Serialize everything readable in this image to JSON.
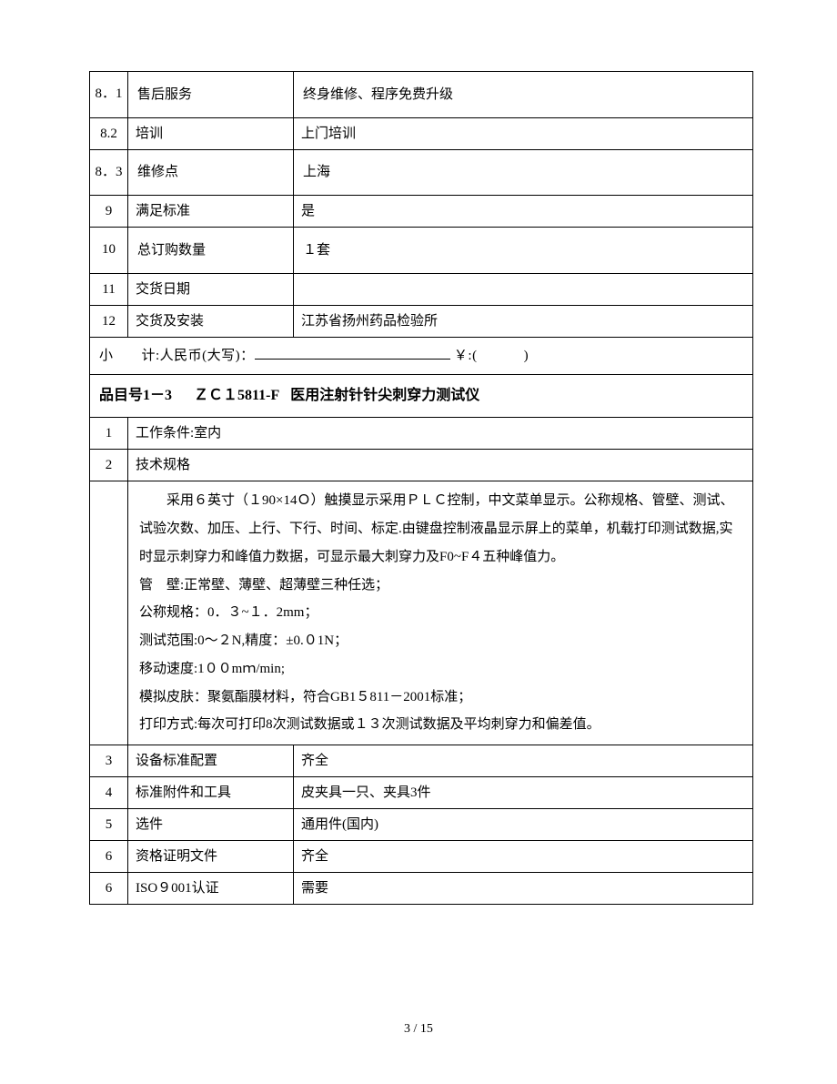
{
  "rows_top": [
    {
      "num": "8．1",
      "label": "售后服务",
      "value": "终身维修、程序免费升级",
      "tall": true
    },
    {
      "num": "8.2",
      "label": "培训",
      "value": "上门培训",
      "tall": false
    },
    {
      "num": "8．3",
      "label": "维修点",
      "value": "上海",
      "tall": true
    },
    {
      "num": "9",
      "label": "满足标准",
      "value": "是",
      "tall": false
    },
    {
      "num": "10",
      "label": "总订购数量",
      "value": "１套",
      "tall": true
    },
    {
      "num": "11",
      "label": "交货日期",
      "value": "",
      "tall": false
    },
    {
      "num": "12",
      "label": "交货及安装",
      "value": "江苏省扬州药品检验所",
      "tall": false
    }
  ],
  "subtotal": {
    "prefix": "小　　计:人民币(大写)：",
    "suffix1": "￥:(",
    "suffix2": ")"
  },
  "section_header": {
    "item_no": "品目号1－3",
    "model": "ＺＣ１5811-F",
    "name": "医用注射针针尖刺穿力测试仪"
  },
  "row_1": {
    "num": "1",
    "label": "工作条件:室内"
  },
  "row_2": {
    "num": "2",
    "label": "技术规格"
  },
  "spec_lines": [
    "采用６英寸（１90×14Ｏ）触摸显示采用ＰＬＣ控制，中文菜单显示。公称规格、管壁、测试、试验次数、加压、上行、下行、时间、标定.由键盘控制液晶显示屏上的菜单，机载打印测试数据,实时显示刺穿力和峰值力数据，可显示最大刺穿力及F0~F４五种峰值力。",
    "管　壁:正常壁、薄壁、超薄壁三种任选；",
    "公称规格：0．３~１．2mm；",
    "测试范围:0～２N,精度：±0.０1N；",
    "移动速度:1００mｍ/min;",
    "模拟皮肤：聚氨酯膜材料，符合GB1５811－2001标准；",
    "打印方式:每次可打印8次测试数据或１３次测试数据及平均刺穿力和偏差值。"
  ],
  "rows_bottom": [
    {
      "num": "3",
      "label": "设备标准配置",
      "value": "齐全"
    },
    {
      "num": "4",
      "label": "标准附件和工具",
      "value": "皮夹具一只、夹具3件"
    },
    {
      "num": "5",
      "label": "选件",
      "value": "通用件(国内)"
    },
    {
      "num": "6",
      "label": "资格证明文件",
      "value": "齐全"
    },
    {
      "num": "6",
      "label": "ISO９001认证",
      "value": "需要"
    }
  ],
  "page_number": "3 / 15"
}
